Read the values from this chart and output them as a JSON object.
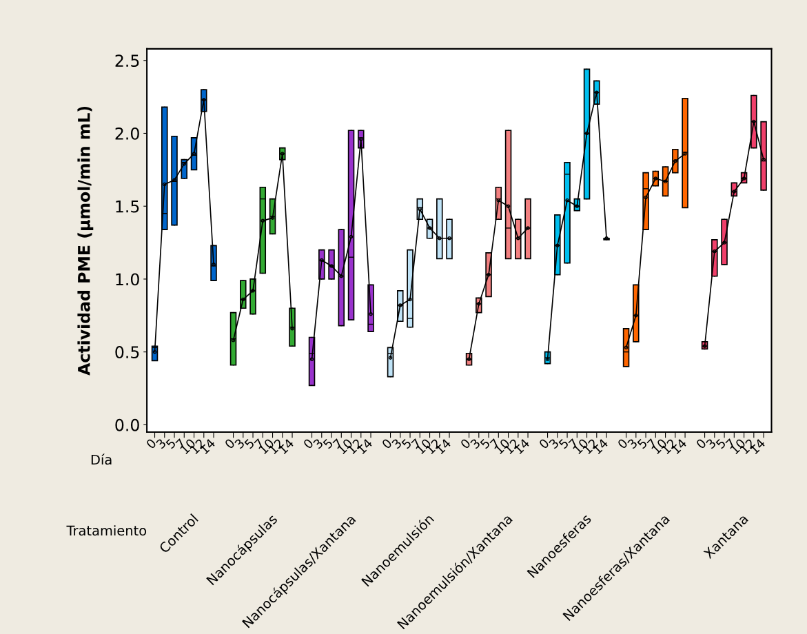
{
  "chart_data": {
    "type": "box",
    "ylabel": "Actividad PME (µmol/min mL)",
    "categories": [
      "0",
      "3",
      "5",
      "7",
      "10",
      "12",
      "14",
      null,
      "0",
      "3",
      "5",
      "7",
      "10",
      "12",
      "14",
      null,
      "0",
      "3",
      "5",
      "7",
      "10",
      "12",
      "14",
      null,
      "0",
      "3",
      "5",
      "7",
      "10",
      "12",
      "14",
      null,
      "0",
      "3",
      "5",
      "7",
      "10",
      "12",
      "14",
      null,
      "0",
      "3",
      "5",
      "7",
      "10",
      "12",
      "14",
      null,
      "0",
      "3",
      "5",
      "7",
      "10",
      "12",
      "14",
      null,
      "0",
      "3",
      "5",
      "7",
      "10",
      "12",
      "14"
    ],
    "annotations": [
      "Día",
      "Tratamiento",
      "Control",
      "Nanocápsulas",
      "Nanocápsulas/Xantana",
      "Nanoemulsión",
      "Nanoemulsión/Xantana",
      "Nanoesferas",
      "Nanoesferas/Xantana",
      "Xantana"
    ],
    "ylim": [
      -0.05,
      2.58
    ],
    "yticks": [
      {
        "value": 0,
        "label": "0.0"
      },
      {
        "value": 0.5,
        "label": "0.5"
      },
      {
        "value": 1,
        "label": "1.0"
      },
      {
        "value": 1.5,
        "label": "1.5"
      },
      {
        "value": 2,
        "label": "2.0"
      },
      {
        "value": 2.5,
        "label": "2.5"
      }
    ],
    "grid": false,
    "series": [
      {
        "color": "#0066cc",
        "boxes": [
          {
            "low": 0.44,
            "q1": 0.44,
            "median": 0.53,
            "q3": 0.54,
            "high": 0.54,
            "mean": 0.5
          },
          {
            "low": 1.34,
            "q1": 1.34,
            "median": 1.45,
            "q3": 2.18,
            "high": 2.18,
            "mean": 1.65
          },
          {
            "low": 1.37,
            "q1": 1.37,
            "median": 1.67,
            "q3": 1.98,
            "high": 1.98,
            "mean": 1.68
          },
          {
            "low": 1.69,
            "q1": 1.69,
            "median": 1.8,
            "q3": 1.82,
            "high": 1.82,
            "mean": 1.79
          },
          {
            "low": 1.75,
            "q1": 1.75,
            "median": 1.85,
            "q3": 1.97,
            "high": 1.97,
            "mean": 1.86
          },
          {
            "low": 2.15,
            "q1": 2.15,
            "median": 2.23,
            "q3": 2.3,
            "high": 2.3,
            "mean": 2.23
          },
          {
            "low": 0.99,
            "q1": 0.99,
            "median": 1.09,
            "q3": 1.23,
            "high": 1.23,
            "mean": 1.1
          },
          null,
          null,
          null,
          null,
          null,
          null,
          null,
          null,
          null,
          null,
          null,
          null,
          null,
          null,
          null,
          null,
          null,
          null,
          null,
          null,
          null,
          null,
          null,
          null,
          null,
          null,
          null,
          null,
          null,
          null,
          null,
          null,
          null,
          null,
          null,
          null,
          null,
          null,
          null,
          null,
          null,
          null,
          null,
          null,
          null,
          null,
          null,
          null,
          null,
          null,
          null,
          null,
          null,
          null,
          null,
          null
        ]
      },
      {
        "color": "#33aa33",
        "boxes": [
          null,
          null,
          null,
          null,
          null,
          null,
          null,
          null,
          {
            "low": 0.41,
            "q1": 0.41,
            "median": 0.59,
            "q3": 0.77,
            "high": 0.77,
            "mean": 0.58
          },
          {
            "low": 0.8,
            "q1": 0.8,
            "median": 0.86,
            "q3": 0.99,
            "high": 0.99,
            "mean": 0.86
          },
          {
            "low": 0.76,
            "q1": 0.76,
            "median": 0.92,
            "q3": 1.0,
            "high": 1.0,
            "mean": 0.92
          },
          {
            "low": 1.04,
            "q1": 1.04,
            "median": 1.55,
            "q3": 1.63,
            "high": 1.63,
            "mean": 1.4
          },
          {
            "low": 1.31,
            "q1": 1.31,
            "median": 1.43,
            "q3": 1.55,
            "high": 1.55,
            "mean": 1.42
          },
          {
            "low": 1.82,
            "q1": 1.82,
            "median": 1.86,
            "q3": 1.9,
            "high": 1.9,
            "mean": 1.86
          },
          {
            "low": 0.54,
            "q1": 0.54,
            "median": 0.67,
            "q3": 0.8,
            "high": 0.8,
            "mean": 0.66
          },
          null,
          null,
          null,
          null,
          null,
          null,
          null,
          null,
          null,
          null,
          null,
          null,
          null,
          null,
          null,
          null,
          null,
          null,
          null,
          null,
          null,
          null,
          null,
          null,
          null,
          null,
          null,
          null,
          null,
          null,
          null,
          null,
          null,
          null,
          null,
          null,
          null,
          null,
          null,
          null,
          null,
          null,
          null,
          null,
          null,
          null,
          null,
          null
        ]
      },
      {
        "color": "#9933cc",
        "boxes": [
          null,
          null,
          null,
          null,
          null,
          null,
          null,
          null,
          null,
          null,
          null,
          null,
          null,
          null,
          null,
          null,
          {
            "low": 0.27,
            "q1": 0.27,
            "median": 0.49,
            "q3": 0.6,
            "high": 0.6,
            "mean": 0.45
          },
          {
            "low": 1.0,
            "q1": 1.0,
            "median": 1.13,
            "q3": 1.2,
            "high": 1.2,
            "mean": 1.13
          },
          {
            "low": 1.0,
            "q1": 1.0,
            "median": 1.09,
            "q3": 1.2,
            "high": 1.2,
            "mean": 1.09
          },
          {
            "low": 0.68,
            "q1": 0.68,
            "median": 1.02,
            "q3": 1.34,
            "high": 1.34,
            "mean": 1.02
          },
          {
            "low": 0.72,
            "q1": 0.72,
            "median": 1.15,
            "q3": 2.02,
            "high": 2.02,
            "mean": 1.29
          },
          {
            "low": 1.9,
            "q1": 1.9,
            "median": 1.97,
            "q3": 2.02,
            "high": 2.02,
            "mean": 1.96
          },
          {
            "low": 0.64,
            "q1": 0.64,
            "median": 0.69,
            "q3": 0.96,
            "high": 0.96,
            "mean": 0.76
          },
          null,
          null,
          null,
          null,
          null,
          null,
          null,
          null,
          null,
          null,
          null,
          null,
          null,
          null,
          null,
          null,
          null,
          null,
          null,
          null,
          null,
          null,
          null,
          null,
          null,
          null,
          null,
          null,
          null,
          null,
          null,
          null,
          null,
          null,
          null,
          null,
          null,
          null,
          null,
          null
        ]
      },
      {
        "color": "#bfe3f7",
        "boxes": [
          null,
          null,
          null,
          null,
          null,
          null,
          null,
          null,
          null,
          null,
          null,
          null,
          null,
          null,
          null,
          null,
          null,
          null,
          null,
          null,
          null,
          null,
          null,
          null,
          {
            "low": 0.33,
            "q1": 0.33,
            "median": 0.49,
            "q3": 0.53,
            "high": 0.53,
            "mean": 0.46
          },
          {
            "low": 0.71,
            "q1": 0.71,
            "median": 0.82,
            "q3": 0.92,
            "high": 0.92,
            "mean": 0.82
          },
          {
            "low": 0.67,
            "q1": 0.67,
            "median": 0.73,
            "q3": 1.2,
            "high": 1.2,
            "mean": 0.86
          },
          {
            "low": 1.41,
            "q1": 1.41,
            "median": 1.49,
            "q3": 1.55,
            "high": 1.55,
            "mean": 1.48
          },
          {
            "low": 1.28,
            "q1": 1.28,
            "median": 1.35,
            "q3": 1.41,
            "high": 1.41,
            "mean": 1.35
          },
          {
            "low": 1.14,
            "q1": 1.14,
            "median": 1.28,
            "q3": 1.55,
            "high": 1.55,
            "mean": 1.28
          },
          {
            "low": 1.14,
            "q1": 1.14,
            "median": 1.28,
            "q3": 1.41,
            "high": 1.41,
            "mean": 1.28
          },
          null,
          null,
          null,
          null,
          null,
          null,
          null,
          null,
          null,
          null,
          null,
          null,
          null,
          null,
          null,
          null,
          null,
          null,
          null,
          null,
          null,
          null,
          null,
          null,
          null,
          null,
          null,
          null,
          null,
          null,
          null,
          null
        ]
      },
      {
        "color": "#f28080",
        "boxes": [
          null,
          null,
          null,
          null,
          null,
          null,
          null,
          null,
          null,
          null,
          null,
          null,
          null,
          null,
          null,
          null,
          null,
          null,
          null,
          null,
          null,
          null,
          null,
          null,
          null,
          null,
          null,
          null,
          null,
          null,
          null,
          null,
          {
            "low": 0.41,
            "q1": 0.41,
            "median": 0.45,
            "q3": 0.49,
            "high": 0.49,
            "mean": 0.45
          },
          {
            "low": 0.77,
            "q1": 0.77,
            "median": 0.83,
            "q3": 0.87,
            "high": 0.87,
            "mean": 0.83
          },
          {
            "low": 0.88,
            "q1": 0.88,
            "median": 1.03,
            "q3": 1.18,
            "high": 1.18,
            "mean": 1.03
          },
          {
            "low": 1.41,
            "q1": 1.41,
            "median": 1.55,
            "q3": 1.63,
            "high": 1.63,
            "mean": 1.54
          },
          {
            "low": 1.14,
            "q1": 1.14,
            "median": 1.35,
            "q3": 2.02,
            "high": 2.02,
            "mean": 1.5
          },
          {
            "low": 1.14,
            "q1": 1.14,
            "median": 1.28,
            "q3": 1.41,
            "high": 1.41,
            "mean": 1.28
          },
          {
            "low": 1.14,
            "q1": 1.14,
            "median": 1.35,
            "q3": 1.55,
            "high": 1.55,
            "mean": 1.35
          },
          null,
          null,
          null,
          null,
          null,
          null,
          null,
          null,
          null,
          null,
          null,
          null,
          null,
          null,
          null,
          null,
          null,
          null,
          null,
          null,
          null,
          null,
          null,
          null
        ]
      },
      {
        "color": "#00bfef",
        "boxes": [
          null,
          null,
          null,
          null,
          null,
          null,
          null,
          null,
          null,
          null,
          null,
          null,
          null,
          null,
          null,
          null,
          null,
          null,
          null,
          null,
          null,
          null,
          null,
          null,
          null,
          null,
          null,
          null,
          null,
          null,
          null,
          null,
          null,
          null,
          null,
          null,
          null,
          null,
          null,
          null,
          {
            "low": 0.42,
            "q1": 0.42,
            "median": 0.46,
            "q3": 0.5,
            "high": 0.5,
            "mean": 0.45
          },
          {
            "low": 1.03,
            "q1": 1.03,
            "median": 1.23,
            "q3": 1.44,
            "high": 1.44,
            "mean": 1.23
          },
          {
            "low": 1.11,
            "q1": 1.11,
            "median": 1.72,
            "q3": 1.8,
            "high": 1.8,
            "mean": 1.54
          },
          {
            "low": 1.47,
            "q1": 1.47,
            "median": 1.5,
            "q3": 1.55,
            "high": 1.55,
            "mean": 1.5
          },
          {
            "low": 1.55,
            "q1": 1.55,
            "median": 2.0,
            "q3": 2.44,
            "high": 2.44,
            "mean": 2.0
          },
          {
            "low": 2.2,
            "q1": 2.2,
            "median": 2.28,
            "q3": 2.36,
            "high": 2.36,
            "mean": 2.28
          },
          {
            "low": 1.27,
            "q1": 1.27,
            "median": 1.28,
            "q3": 1.28,
            "high": 1.28,
            "mean": 1.28
          },
          null,
          null,
          null,
          null,
          null,
          null,
          null,
          null,
          null,
          null,
          null,
          null,
          null,
          null,
          null,
          null
        ]
      },
      {
        "color": "#ff6600",
        "boxes": [
          null,
          null,
          null,
          null,
          null,
          null,
          null,
          null,
          null,
          null,
          null,
          null,
          null,
          null,
          null,
          null,
          null,
          null,
          null,
          null,
          null,
          null,
          null,
          null,
          null,
          null,
          null,
          null,
          null,
          null,
          null,
          null,
          null,
          null,
          null,
          null,
          null,
          null,
          null,
          null,
          null,
          null,
          null,
          null,
          null,
          null,
          null,
          null,
          {
            "low": 0.4,
            "q1": 0.4,
            "median": 0.5,
            "q3": 0.66,
            "high": 0.66,
            "mean": 0.53
          },
          {
            "low": 0.57,
            "q1": 0.57,
            "median": 0.75,
            "q3": 0.96,
            "high": 0.96,
            "mean": 0.75
          },
          {
            "low": 1.34,
            "q1": 1.34,
            "median": 1.62,
            "q3": 1.73,
            "high": 1.73,
            "mean": 1.56
          },
          {
            "low": 1.64,
            "q1": 1.64,
            "median": 1.69,
            "q3": 1.74,
            "high": 1.74,
            "mean": 1.69
          },
          {
            "low": 1.57,
            "q1": 1.57,
            "median": 1.67,
            "q3": 1.77,
            "high": 1.77,
            "mean": 1.67
          },
          {
            "low": 1.73,
            "q1": 1.73,
            "median": 1.81,
            "q3": 1.89,
            "high": 1.89,
            "mean": 1.81
          },
          {
            "low": 1.49,
            "q1": 1.49,
            "median": 1.87,
            "q3": 2.24,
            "high": 2.24,
            "mean": 1.86
          },
          null,
          null,
          null,
          null,
          null,
          null,
          null,
          null
        ]
      },
      {
        "color": "#f0406b",
        "boxes": [
          null,
          null,
          null,
          null,
          null,
          null,
          null,
          null,
          null,
          null,
          null,
          null,
          null,
          null,
          null,
          null,
          null,
          null,
          null,
          null,
          null,
          null,
          null,
          null,
          null,
          null,
          null,
          null,
          null,
          null,
          null,
          null,
          null,
          null,
          null,
          null,
          null,
          null,
          null,
          null,
          null,
          null,
          null,
          null,
          null,
          null,
          null,
          null,
          null,
          null,
          null,
          null,
          null,
          null,
          null,
          null,
          {
            "low": 0.52,
            "q1": 0.52,
            "median": 0.54,
            "q3": 0.57,
            "high": 0.57,
            "mean": 0.54
          },
          {
            "low": 1.02,
            "q1": 1.02,
            "median": 1.19,
            "q3": 1.27,
            "high": 1.27,
            "mean": 1.19
          },
          {
            "low": 1.1,
            "q1": 1.1,
            "median": 1.25,
            "q3": 1.41,
            "high": 1.41,
            "mean": 1.25
          },
          {
            "low": 1.57,
            "q1": 1.57,
            "median": 1.6,
            "q3": 1.66,
            "high": 1.66,
            "mean": 1.6
          },
          {
            "low": 1.66,
            "q1": 1.66,
            "median": 1.69,
            "q3": 1.73,
            "high": 1.73,
            "mean": 1.69
          },
          {
            "low": 1.9,
            "q1": 1.9,
            "median": 2.08,
            "q3": 2.26,
            "high": 2.26,
            "mean": 2.08
          },
          {
            "low": 1.61,
            "q1": 1.61,
            "median": 1.81,
            "q3": 2.08,
            "high": 2.08,
            "mean": 1.82
          }
        ]
      },
      {
        "type": "line",
        "color": "#000000",
        "values": [
          0.5,
          1.65,
          1.68,
          1.79,
          1.86,
          2.23,
          1.1,
          null,
          0.58,
          0.86,
          0.92,
          1.4,
          1.42,
          1.86,
          0.66,
          null,
          0.45,
          1.13,
          1.09,
          1.02,
          1.29,
          1.96,
          0.76,
          null,
          0.46,
          0.82,
          0.86,
          1.48,
          1.35,
          1.28,
          1.28,
          null,
          0.45,
          0.83,
          1.03,
          1.54,
          1.5,
          1.28,
          1.35,
          null,
          0.45,
          1.23,
          1.54,
          1.5,
          2.0,
          2.28,
          1.28,
          null,
          0.53,
          0.75,
          1.56,
          1.69,
          1.67,
          1.81,
          1.86,
          null,
          0.54,
          1.19,
          1.25,
          1.6,
          1.69,
          2.08,
          1.82
        ]
      }
    ]
  }
}
